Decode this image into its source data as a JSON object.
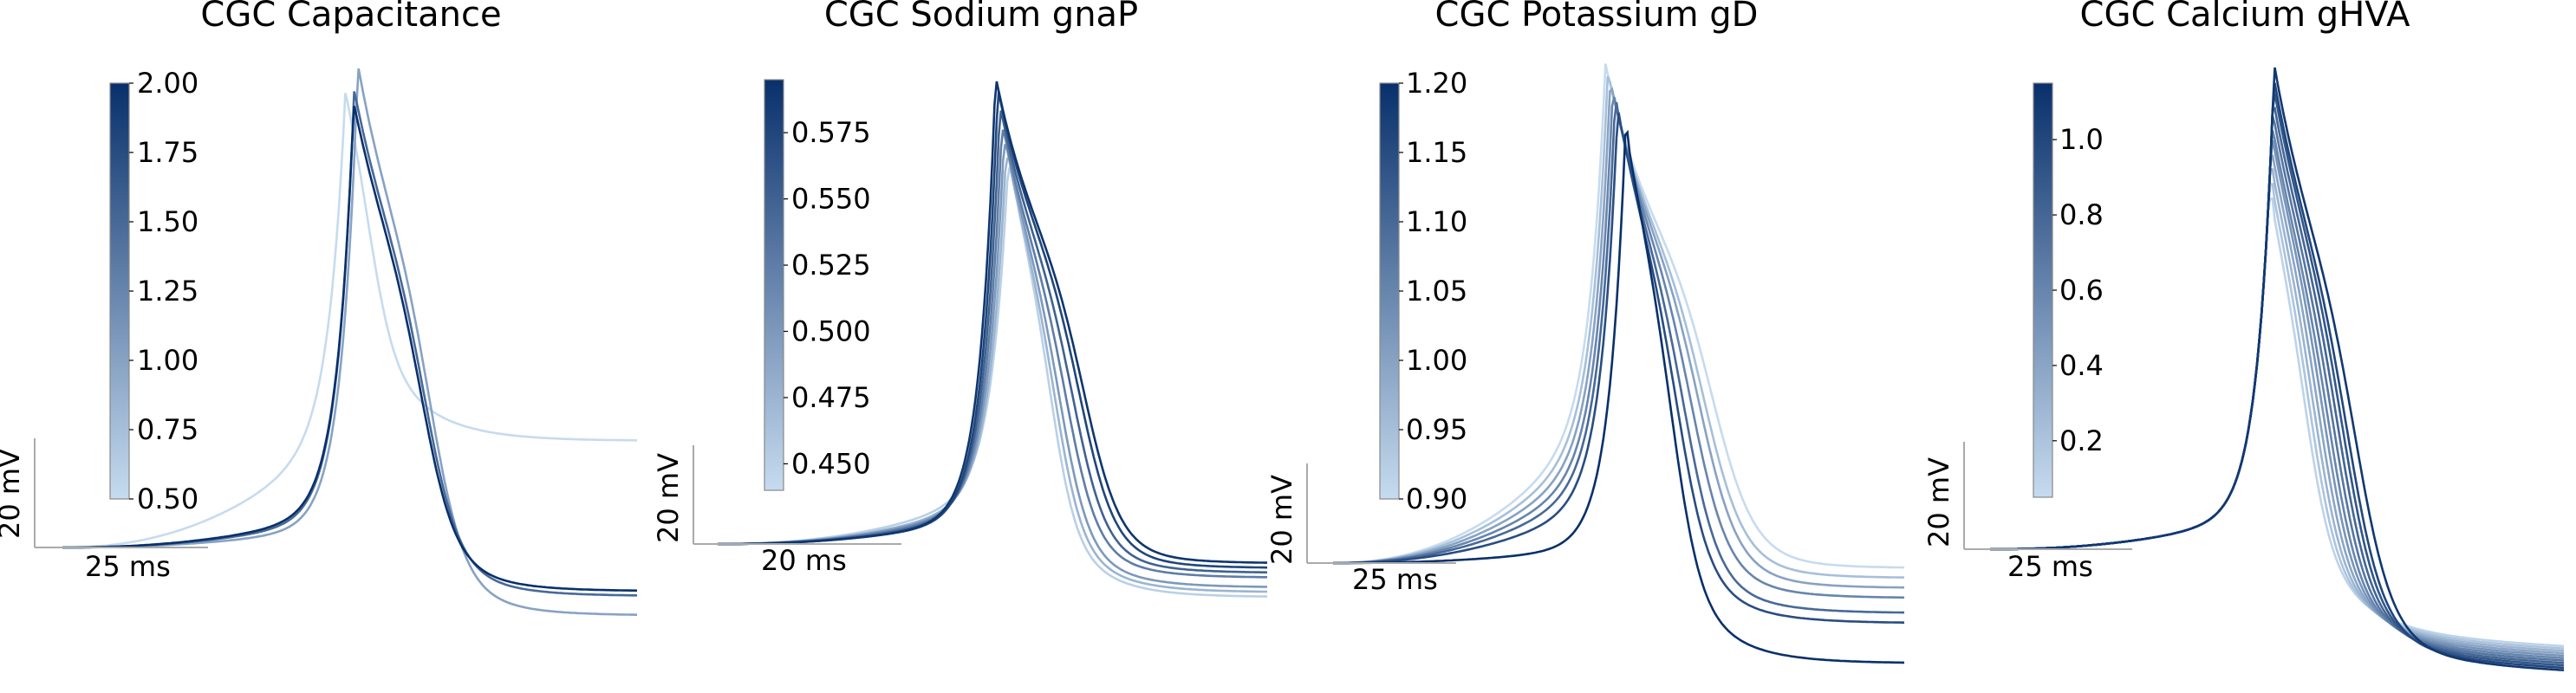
{
  "chart_data": [
    {
      "type": "line",
      "title": "CGC Capacitance",
      "colorbar": {
        "min": 0.5,
        "max": 2.0,
        "ticks": [
          "0.50",
          "0.75",
          "1.00",
          "1.25",
          "1.50",
          "1.75",
          "2.00"
        ]
      },
      "scale_bar": {
        "time": "25 ms",
        "voltage": "20 mV"
      },
      "series": [
        {
          "param": 0.5,
          "shape": {
            "rise": 0.0,
            "peak": 0.98,
            "width": 0.15,
            "end": 0.22,
            "pre": 0.25,
            "late": 0.0
          }
        },
        {
          "param": 1.0,
          "shape": {
            "rise": 0.04,
            "peak": 1.0,
            "width": 0.48,
            "end": -0.14,
            "pre": 0.05,
            "late": 0.0
          }
        },
        {
          "param": 1.5,
          "shape": {
            "rise": 0.03,
            "peak": 0.94,
            "width": 0.46,
            "end": -0.1,
            "pre": 0.07,
            "late": 0.0
          }
        },
        {
          "param": 2.0,
          "shape": {
            "rise": 0.03,
            "peak": 0.91,
            "width": 0.44,
            "end": -0.09,
            "pre": 0.08,
            "late": 0.0
          }
        }
      ]
    },
    {
      "type": "line",
      "title": "CGC Sodium gnaP",
      "colorbar": {
        "min": 0.44,
        "max": 0.595,
        "ticks": [
          "0.450",
          "0.475",
          "0.500",
          "0.525",
          "0.550",
          "0.575"
        ]
      },
      "scale_bar": {
        "time": "20 ms",
        "voltage": "20 mV"
      },
      "series": [
        {
          "param": 0.45,
          "shape": {
            "rise": 0.07,
            "peak": 0.78,
            "width": 0.28,
            "end": -0.11,
            "pre": 0.12,
            "late": 0.0
          }
        },
        {
          "param": 0.475,
          "shape": {
            "rise": 0.06,
            "peak": 0.8,
            "width": 0.33,
            "end": -0.1,
            "pre": 0.1,
            "late": 0.0
          }
        },
        {
          "param": 0.5,
          "shape": {
            "rise": 0.05,
            "peak": 0.83,
            "width": 0.38,
            "end": -0.09,
            "pre": 0.09,
            "late": 0.0
          }
        },
        {
          "param": 0.525,
          "shape": {
            "rise": 0.04,
            "peak": 0.86,
            "width": 0.44,
            "end": -0.07,
            "pre": 0.08,
            "late": 0.0
          }
        },
        {
          "param": 0.55,
          "shape": {
            "rise": 0.03,
            "peak": 0.9,
            "width": 0.5,
            "end": -0.06,
            "pre": 0.07,
            "late": 0.0
          }
        },
        {
          "param": 0.575,
          "shape": {
            "rise": 0.02,
            "peak": 0.94,
            "width": 0.56,
            "end": -0.05,
            "pre": 0.06,
            "late": 0.0
          }
        },
        {
          "param": 0.59,
          "shape": {
            "rise": 0.01,
            "peak": 0.97,
            "width": 0.6,
            "end": -0.04,
            "pre": 0.06,
            "late": 0.0
          }
        }
      ]
    },
    {
      "type": "line",
      "title": "CGC Potassium gD",
      "colorbar": {
        "min": 0.9,
        "max": 1.2,
        "ticks": [
          "0.90",
          "0.95",
          "1.00",
          "1.05",
          "1.10",
          "1.15",
          "1.20"
        ]
      },
      "scale_bar": {
        "time": "25 ms",
        "voltage": "20 mV"
      },
      "series": [
        {
          "param": 0.9,
          "shape": {
            "rise": -0.03,
            "peak": 1.0,
            "width": 0.66,
            "end": -0.01,
            "pre": 0.3,
            "late": 0.0
          }
        },
        {
          "param": 0.95,
          "shape": {
            "rise": -0.02,
            "peak": 0.98,
            "width": 0.6,
            "end": -0.03,
            "pre": 0.27,
            "late": 0.0
          }
        },
        {
          "param": 1.0,
          "shape": {
            "rise": -0.01,
            "peak": 0.96,
            "width": 0.56,
            "end": -0.05,
            "pre": 0.24,
            "late": 0.0
          }
        },
        {
          "param": 1.05,
          "shape": {
            "rise": 0.0,
            "peak": 0.94,
            "width": 0.5,
            "end": -0.07,
            "pre": 0.21,
            "late": 0.0
          }
        },
        {
          "param": 1.1,
          "shape": {
            "rise": 0.01,
            "peak": 0.92,
            "width": 0.44,
            "end": -0.1,
            "pre": 0.18,
            "late": 0.0
          }
        },
        {
          "param": 1.15,
          "shape": {
            "rise": 0.02,
            "peak": 0.9,
            "width": 0.38,
            "end": -0.12,
            "pre": 0.14,
            "late": 0.0
          }
        },
        {
          "param": 1.2,
          "shape": {
            "rise": 0.05,
            "peak": 0.86,
            "width": 0.3,
            "end": -0.2,
            "pre": 0.04,
            "late": 0.0
          }
        }
      ]
    },
    {
      "type": "line",
      "title": "CGC Calcium gHVA",
      "colorbar": {
        "min": 0.05,
        "max": 1.15,
        "ticks": [
          "0.2",
          "0.4",
          "0.6",
          "0.8",
          "1.0"
        ]
      },
      "scale_bar": {
        "time": "25 ms",
        "voltage": "20 mV"
      },
      "series": [
        {
          "param": 0.1,
          "shape": {
            "rise": 0.0,
            "peak": 0.72,
            "width": 0.2,
            "end": -0.17,
            "pre": 0.08,
            "late": 0.03
          }
        },
        {
          "param": 0.2,
          "shape": {
            "rise": 0.0,
            "peak": 0.75,
            "width": 0.23,
            "end": -0.175,
            "pre": 0.08,
            "late": 0.03
          }
        },
        {
          "param": 0.3,
          "shape": {
            "rise": 0.0,
            "peak": 0.78,
            "width": 0.26,
            "end": -0.18,
            "pre": 0.08,
            "late": 0.03
          }
        },
        {
          "param": 0.4,
          "shape": {
            "rise": 0.0,
            "peak": 0.81,
            "width": 0.29,
            "end": -0.185,
            "pre": 0.08,
            "late": 0.03
          }
        },
        {
          "param": 0.5,
          "shape": {
            "rise": 0.0,
            "peak": 0.84,
            "width": 0.32,
            "end": -0.19,
            "pre": 0.08,
            "late": 0.03
          }
        },
        {
          "param": 0.6,
          "shape": {
            "rise": 0.0,
            "peak": 0.86,
            "width": 0.35,
            "end": -0.195,
            "pre": 0.08,
            "late": 0.03
          }
        },
        {
          "param": 0.7,
          "shape": {
            "rise": 0.0,
            "peak": 0.89,
            "width": 0.38,
            "end": -0.2,
            "pre": 0.08,
            "late": 0.03
          }
        },
        {
          "param": 0.8,
          "shape": {
            "rise": 0.0,
            "peak": 0.92,
            "width": 0.41,
            "end": -0.205,
            "pre": 0.08,
            "late": 0.03
          }
        },
        {
          "param": 0.9,
          "shape": {
            "rise": 0.0,
            "peak": 0.95,
            "width": 0.44,
            "end": -0.21,
            "pre": 0.08,
            "late": 0.03
          }
        },
        {
          "param": 1.0,
          "shape": {
            "rise": 0.0,
            "peak": 0.97,
            "width": 0.47,
            "end": -0.215,
            "pre": 0.08,
            "late": 0.03
          }
        },
        {
          "param": 1.1,
          "shape": {
            "rise": 0.0,
            "peak": 1.0,
            "width": 0.52,
            "end": -0.22,
            "pre": 0.08,
            "late": 0.03
          }
        }
      ]
    }
  ],
  "colors": {
    "colormap_light": "#c6dbef",
    "colormap_dark": "#08306b",
    "scale_bar": "#aaaaaa",
    "colorbar_edge": "#888888"
  }
}
